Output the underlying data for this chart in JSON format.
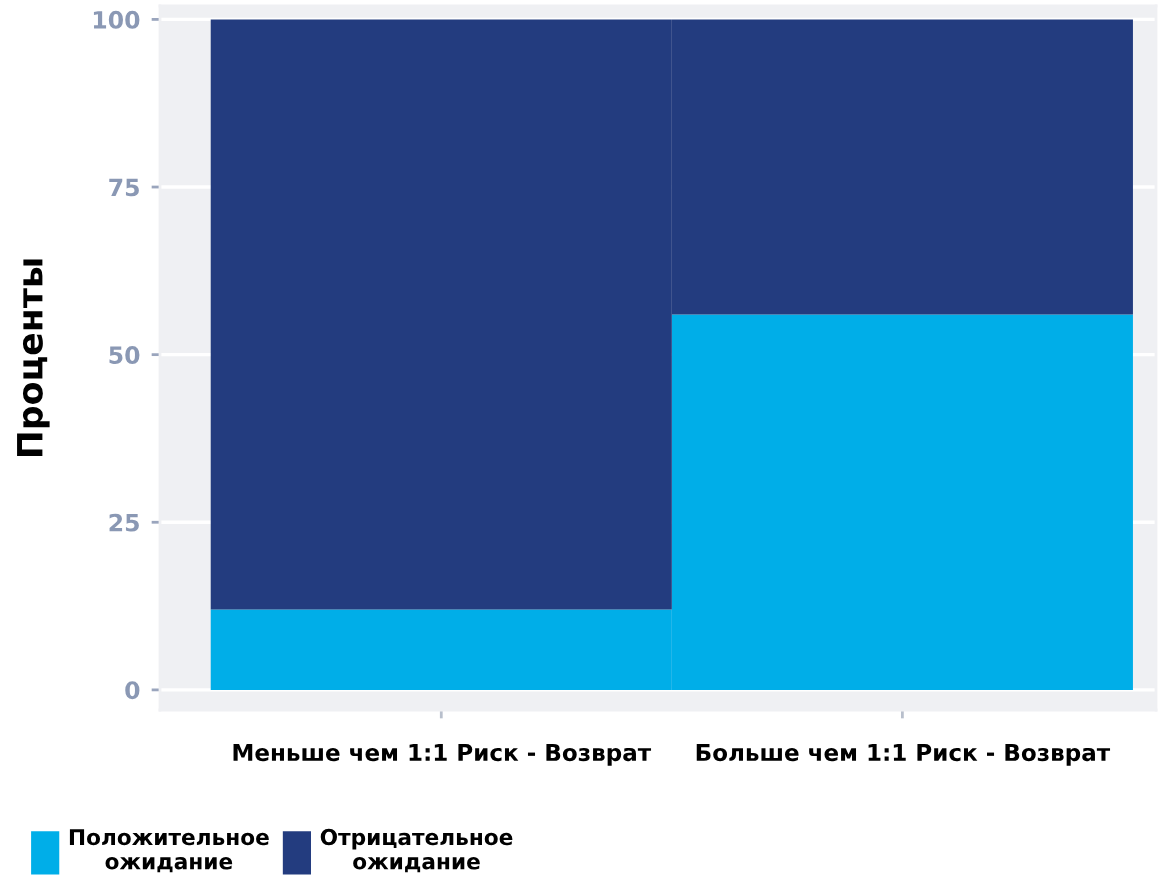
{
  "chart_data": {
    "type": "bar",
    "stacked": true,
    "ylabel": "Проценты",
    "categories": [
      "Меньше чем 1:1 Риск - Возврат",
      "Больше чем 1:1 Риск - Возврат"
    ],
    "series": [
      {
        "name": "Положительное\nожидание",
        "color": "#00aee8",
        "values": [
          12,
          56
        ]
      },
      {
        "name": "Отрицательное\nожидание",
        "color": "#233c7f",
        "values": [
          88,
          44
        ]
      }
    ],
    "ylim": [
      -3,
      102
    ],
    "yticks": [
      0,
      25,
      50,
      75,
      100
    ],
    "grid": "y",
    "legend": "bottom left"
  }
}
